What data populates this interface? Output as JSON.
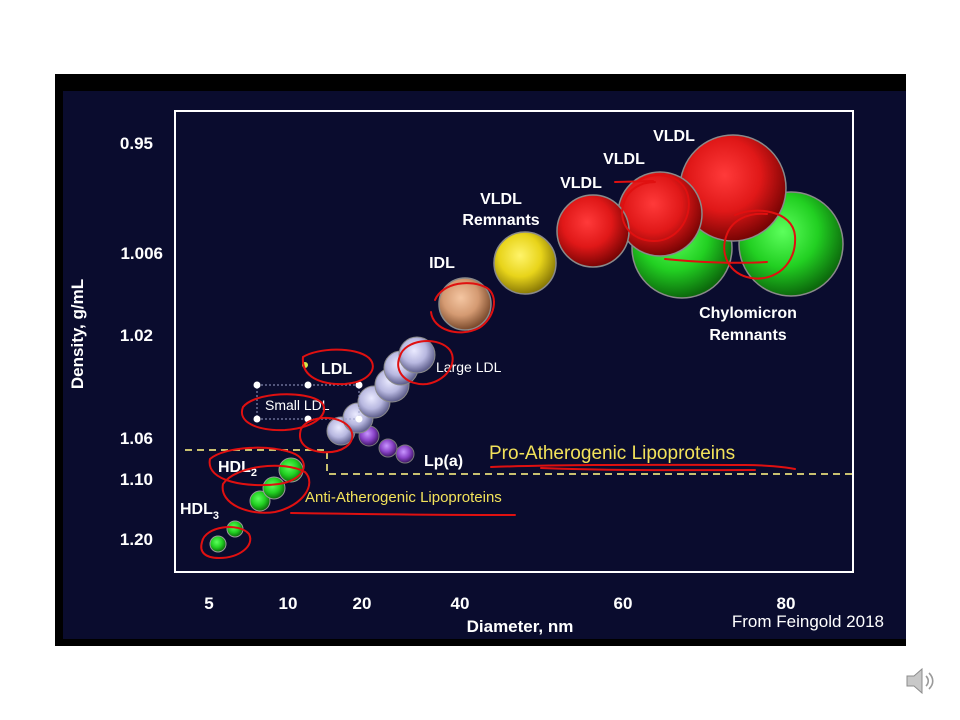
{
  "colors": {
    "background": "#0a0c2e",
    "vldl": "#e01818",
    "chylomicron": "#22d022",
    "idl": "#d49a72",
    "vldl_remnants": "#e8d41a",
    "ldl": "#b8b8e0",
    "lpa": "#8a44c8",
    "hdl": "#2ecc2e",
    "annotation_ink": "#e01010",
    "region_text": "#f2e25a"
  },
  "icons": {
    "speaker": "speaker-icon"
  },
  "chart_data": {
    "type": "scatter",
    "xlabel": "Diameter, nm",
    "ylabel": "Density, g/mL",
    "x_ticks": [
      "5",
      "10",
      "20",
      "40",
      "60",
      "80"
    ],
    "y_ticks": [
      "0.95",
      "1.006",
      "1.02",
      "1.06",
      "1.10",
      "1.20"
    ],
    "credit": "From Feingold 2018",
    "grid": false,
    "regions": [
      {
        "label": "Pro-Atherogenic Lipoproteins"
      },
      {
        "label": "Anti-Atherogenic Lipoproteins"
      }
    ],
    "particle_labels": {
      "vldl": "VLDL",
      "vldl_remnants_line1": "VLDL",
      "vldl_remnants_line2": "Remnants",
      "chylomicron_line1": "Chylomicron",
      "chylomicron_line2": "Remnants",
      "idl": "IDL",
      "ldl": "LDL",
      "large_ldl": "Large LDL",
      "small_ldl": "Small LDL",
      "lpa": "Lp(a)",
      "hdl": "HDL",
      "hdl2_sub": "2",
      "hdl3_sub": "3"
    },
    "series": [
      {
        "name": "VLDL",
        "points": [
          {
            "x": 56,
            "y": 1.0,
            "size": 36
          },
          {
            "x": 65,
            "y": 0.99,
            "size": 42
          },
          {
            "x": 75,
            "y": 0.975,
            "size": 53
          }
        ]
      },
      {
        "name": "Chylomicron Remnants",
        "points": [
          {
            "x": 67,
            "y": 1.006,
            "size": 50
          },
          {
            "x": 80,
            "y": 1.003,
            "size": 52
          }
        ]
      },
      {
        "name": "VLDL Remnants",
        "points": [
          {
            "x": 48,
            "y": 1.006,
            "size": 31
          }
        ]
      },
      {
        "name": "IDL",
        "points": [
          {
            "x": 40,
            "y": 1.016,
            "size": 26
          }
        ]
      },
      {
        "name": "LDL",
        "points": [
          {
            "x": 32,
            "y": 1.025,
            "size": 20
          },
          {
            "x": 29,
            "y": 1.032,
            "size": 19
          },
          {
            "x": 26,
            "y": 1.04,
            "size": 18
          },
          {
            "x": 23,
            "y": 1.048,
            "size": 17
          },
          {
            "x": 20,
            "y": 1.055,
            "size": 16
          },
          {
            "x": 18,
            "y": 1.06,
            "size": 15
          }
        ]
      },
      {
        "name": "Lp(a)",
        "points": [
          {
            "x": 21,
            "y": 1.06,
            "size": 10
          },
          {
            "x": 25,
            "y": 1.066,
            "size": 9
          },
          {
            "x": 28,
            "y": 1.07,
            "size": 9
          }
        ]
      },
      {
        "name": "HDL",
        "points": [
          {
            "x": 10,
            "y": 1.09,
            "size": 12
          },
          {
            "x": 9,
            "y": 1.11,
            "size": 11
          },
          {
            "x": 8,
            "y": 1.13,
            "size": 10
          },
          {
            "x": 6,
            "y": 1.17,
            "size": 9
          },
          {
            "x": 5.5,
            "y": 1.2,
            "size": 8
          }
        ]
      }
    ]
  }
}
